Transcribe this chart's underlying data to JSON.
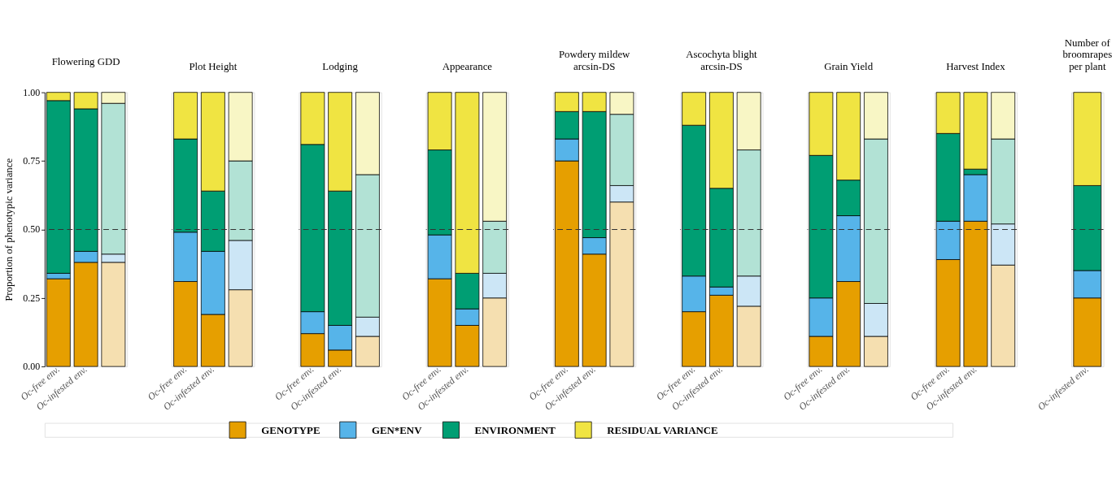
{
  "chart_data": [
    {
      "type": "bar",
      "stacked": true,
      "title": [
        "Flowering GDD"
      ],
      "ylabel": "Proportion of phenotypic variance",
      "categories": [
        "Oc-free env.",
        "Oc-infested env.",
        null
      ],
      "ylim": [
        0,
        1
      ],
      "yticks": [
        {
          "value": 0,
          "label": "0.00"
        },
        {
          "value": 0.25,
          "label": "0.25"
        },
        {
          "value": 0.5,
          "label": "0.50"
        },
        {
          "value": 0.75,
          "label": "0.75"
        },
        {
          "value": 1,
          "label": "1.00"
        }
      ],
      "grid": false,
      "legend": "bottom",
      "ref_lines": [
        {
          "axis": "y",
          "value": 0.5,
          "line_style": "dashed",
          "color": "#333333"
        }
      ],
      "series": [
        {
          "name": "GENOTYPE",
          "color": "#e69f00",
          "colors": [
            "#e69f00",
            "#e69f00",
            "#f5dfb0"
          ],
          "values": [
            0.32,
            0.38,
            0.38
          ]
        },
        {
          "name": "GEN*ENV",
          "color": "#56b4e9",
          "colors": [
            "#56b4e9",
            "#56b4e9",
            "#cce6f6"
          ],
          "values": [
            0.02,
            0.04,
            0.03
          ]
        },
        {
          "name": "ENVIRONMENT",
          "color": "#009e73",
          "colors": [
            "#009e73",
            "#009e73",
            "#b2e2d5"
          ],
          "values": [
            0.63,
            0.52,
            0.55
          ]
        },
        {
          "name": "RESIDUAL VARIANCE",
          "color": "#f0e442",
          "colors": [
            "#f0e442",
            "#f0e442",
            "#f8f6c5"
          ],
          "values": [
            0.03,
            0.06,
            0.04
          ]
        }
      ]
    },
    {
      "type": "bar",
      "stacked": true,
      "title": [
        "Plot Height"
      ],
      "categories": [
        "Oc-free env.",
        "Oc-infested env.",
        null
      ],
      "ylim": [
        0,
        1
      ],
      "tick_labels": "x",
      "grid": false,
      "ref_lines": [
        {
          "axis": "y",
          "value": 0.5,
          "line_style": "dashed",
          "color": "#333333"
        }
      ],
      "series": [
        {
          "color": "#e69f00",
          "colors": [
            "#e69f00",
            "#e69f00",
            "#f5dfb0"
          ],
          "values": [
            0.31,
            0.19,
            0.28
          ]
        },
        {
          "color": "#56b4e9",
          "colors": [
            "#56b4e9",
            "#56b4e9",
            "#cce6f6"
          ],
          "values": [
            0.18,
            0.23,
            0.18
          ]
        },
        {
          "color": "#009e73",
          "colors": [
            "#009e73",
            "#009e73",
            "#b2e2d5"
          ],
          "values": [
            0.34,
            0.22,
            0.29
          ]
        },
        {
          "color": "#f0e442",
          "colors": [
            "#f0e442",
            "#f0e442",
            "#f8f6c5"
          ],
          "values": [
            0.17,
            0.36,
            0.25
          ]
        }
      ]
    },
    {
      "type": "bar",
      "stacked": true,
      "title": [
        "Lodging"
      ],
      "categories": [
        "Oc-free env.",
        "Oc-infested env.",
        null
      ],
      "ylim": [
        0,
        1
      ],
      "tick_labels": "x",
      "grid": false,
      "ref_lines": [
        {
          "axis": "y",
          "value": 0.5,
          "line_style": "dashed",
          "color": "#333333"
        }
      ],
      "series": [
        {
          "color": "#e69f00",
          "colors": [
            "#e69f00",
            "#e69f00",
            "#f5dfb0"
          ],
          "values": [
            0.12,
            0.06,
            0.11
          ]
        },
        {
          "color": "#56b4e9",
          "colors": [
            "#56b4e9",
            "#56b4e9",
            "#cce6f6"
          ],
          "values": [
            0.08,
            0.09,
            0.07
          ]
        },
        {
          "color": "#009e73",
          "colors": [
            "#009e73",
            "#009e73",
            "#b2e2d5"
          ],
          "values": [
            0.61,
            0.49,
            0.52
          ]
        },
        {
          "color": "#f0e442",
          "colors": [
            "#f0e442",
            "#f0e442",
            "#f8f6c5"
          ],
          "values": [
            0.19,
            0.36,
            0.3
          ]
        }
      ]
    },
    {
      "type": "bar",
      "stacked": true,
      "title": [
        "Appearance"
      ],
      "categories": [
        "Oc-free env.",
        "Oc-infested env.",
        null
      ],
      "ylim": [
        0,
        1
      ],
      "tick_labels": "x",
      "grid": false,
      "ref_lines": [
        {
          "axis": "y",
          "value": 0.5,
          "line_style": "dashed",
          "color": "#333333"
        }
      ],
      "series": [
        {
          "color": "#e69f00",
          "colors": [
            "#e69f00",
            "#e69f00",
            "#f5dfb0"
          ],
          "values": [
            0.32,
            0.15,
            0.25
          ]
        },
        {
          "color": "#56b4e9",
          "colors": [
            "#56b4e9",
            "#56b4e9",
            "#cce6f6"
          ],
          "values": [
            0.16,
            0.06,
            0.09
          ]
        },
        {
          "color": "#009e73",
          "colors": [
            "#009e73",
            "#009e73",
            "#b2e2d5"
          ],
          "values": [
            0.31,
            0.13,
            0.19
          ]
        },
        {
          "color": "#f0e442",
          "colors": [
            "#f0e442",
            "#f0e442",
            "#f8f6c5"
          ],
          "values": [
            0.21,
            0.66,
            0.47
          ]
        }
      ]
    },
    {
      "type": "bar",
      "stacked": true,
      "title": [
        "Powdery mildew",
        "arcsin-DS"
      ],
      "categories": [
        "Oc-free env.",
        "Oc-infested env.",
        null
      ],
      "ylim": [
        0,
        1
      ],
      "tick_labels": "x",
      "grid": false,
      "ref_lines": [
        {
          "axis": "y",
          "value": 0.5,
          "line_style": "dashed",
          "color": "#333333"
        }
      ],
      "series": [
        {
          "color": "#e69f00",
          "colors": [
            "#e69f00",
            "#e69f00",
            "#f5dfb0"
          ],
          "values": [
            0.75,
            0.41,
            0.6
          ]
        },
        {
          "color": "#56b4e9",
          "colors": [
            "#56b4e9",
            "#56b4e9",
            "#cce6f6"
          ],
          "values": [
            0.08,
            0.06,
            0.06
          ]
        },
        {
          "color": "#009e73",
          "colors": [
            "#009e73",
            "#009e73",
            "#b2e2d5"
          ],
          "values": [
            0.1,
            0.46,
            0.26
          ]
        },
        {
          "color": "#f0e442",
          "colors": [
            "#f0e442",
            "#f0e442",
            "#f8f6c5"
          ],
          "values": [
            0.07,
            0.07,
            0.08
          ]
        }
      ]
    },
    {
      "type": "bar",
      "stacked": true,
      "title": [
        "Ascochyta blight",
        "arcsin-DS"
      ],
      "categories": [
        "Oc-free env.",
        "Oc-infested env.",
        null
      ],
      "ylim": [
        0,
        1
      ],
      "tick_labels": "x",
      "grid": false,
      "ref_lines": [
        {
          "axis": "y",
          "value": 0.5,
          "line_style": "dashed",
          "color": "#333333"
        }
      ],
      "series": [
        {
          "color": "#e69f00",
          "colors": [
            "#e69f00",
            "#e69f00",
            "#f5dfb0"
          ],
          "values": [
            0.2,
            0.26,
            0.22
          ]
        },
        {
          "color": "#56b4e9",
          "colors": [
            "#56b4e9",
            "#56b4e9",
            "#cce6f6"
          ],
          "values": [
            0.13,
            0.03,
            0.11
          ]
        },
        {
          "color": "#009e73",
          "colors": [
            "#009e73",
            "#009e73",
            "#b2e2d5"
          ],
          "values": [
            0.55,
            0.36,
            0.46
          ]
        },
        {
          "color": "#f0e442",
          "colors": [
            "#f0e442",
            "#f0e442",
            "#f8f6c5"
          ],
          "values": [
            0.12,
            0.35,
            0.21
          ]
        }
      ]
    },
    {
      "type": "bar",
      "stacked": true,
      "title": [
        "Grain Yield"
      ],
      "categories": [
        "Oc-free env.",
        "Oc-infested env.",
        null
      ],
      "ylim": [
        0,
        1
      ],
      "tick_labels": "x",
      "grid": false,
      "ref_lines": [
        {
          "axis": "y",
          "value": 0.5,
          "line_style": "dashed",
          "color": "#333333"
        }
      ],
      "series": [
        {
          "color": "#e69f00",
          "colors": [
            "#e69f00",
            "#e69f00",
            "#f5dfb0"
          ],
          "values": [
            0.11,
            0.31,
            0.11
          ]
        },
        {
          "color": "#56b4e9",
          "colors": [
            "#56b4e9",
            "#56b4e9",
            "#cce6f6"
          ],
          "values": [
            0.14,
            0.24,
            0.12
          ]
        },
        {
          "color": "#009e73",
          "colors": [
            "#009e73",
            "#009e73",
            "#b2e2d5"
          ],
          "values": [
            0.52,
            0.13,
            0.6
          ]
        },
        {
          "color": "#f0e442",
          "colors": [
            "#f0e442",
            "#f0e442",
            "#f8f6c5"
          ],
          "values": [
            0.23,
            0.32,
            0.17
          ]
        }
      ]
    },
    {
      "type": "bar",
      "stacked": true,
      "title": [
        "Harvest Index"
      ],
      "categories": [
        "Oc-free env.",
        "Oc-infested env.",
        null
      ],
      "ylim": [
        0,
        1
      ],
      "tick_labels": "x",
      "grid": false,
      "ref_lines": [
        {
          "axis": "y",
          "value": 0.5,
          "line_style": "dashed",
          "color": "#333333"
        }
      ],
      "series": [
        {
          "color": "#e69f00",
          "colors": [
            "#e69f00",
            "#e69f00",
            "#f5dfb0"
          ],
          "values": [
            0.39,
            0.53,
            0.37
          ]
        },
        {
          "color": "#56b4e9",
          "colors": [
            "#56b4e9",
            "#56b4e9",
            "#cce6f6"
          ],
          "values": [
            0.14,
            0.17,
            0.15
          ]
        },
        {
          "color": "#009e73",
          "colors": [
            "#009e73",
            "#009e73",
            "#b2e2d5"
          ],
          "values": [
            0.32,
            0.02,
            0.31
          ]
        },
        {
          "color": "#f0e442",
          "colors": [
            "#f0e442",
            "#f0e442",
            "#f8f6c5"
          ],
          "values": [
            0.15,
            0.28,
            0.17
          ]
        }
      ]
    },
    {
      "type": "bar",
      "stacked": true,
      "title": [
        "Number of",
        "broomrapes",
        "per plant"
      ],
      "categories": [
        "Oc-infested env."
      ],
      "ylim": [
        0,
        1
      ],
      "tick_labels": "x",
      "grid": false,
      "ref_lines": [
        {
          "axis": "y",
          "value": 0.5,
          "line_style": "dashed",
          "color": "#333333"
        }
      ],
      "series": [
        {
          "color": "#e69f00",
          "values": [
            0.25
          ]
        },
        {
          "color": "#56b4e9",
          "values": [
            0.1
          ]
        },
        {
          "color": "#009e73",
          "values": [
            0.31
          ]
        },
        {
          "color": "#f0e442",
          "values": [
            0.34
          ]
        }
      ]
    }
  ]
}
